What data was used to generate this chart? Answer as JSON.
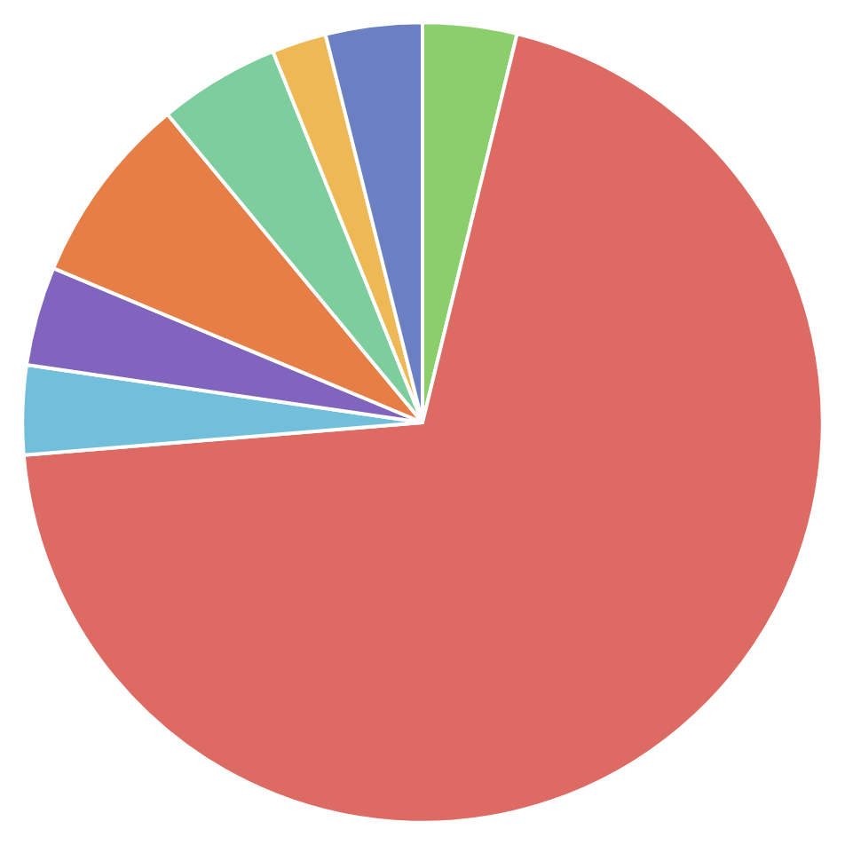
{
  "chart_data": {
    "type": "pie",
    "categories": [
      null,
      null,
      null,
      null,
      null,
      null,
      null,
      null
    ],
    "values": [
      3.8,
      69.9,
      3.6,
      4.0,
      7.7,
      4.9,
      2.2,
      3.9
    ],
    "colors": [
      "#8bcf6d",
      "#de6b63",
      "#72bfdc",
      "#8064bd",
      "#e67e46",
      "#7ecd9d",
      "#eeb855",
      "#6b80c2"
    ]
  }
}
